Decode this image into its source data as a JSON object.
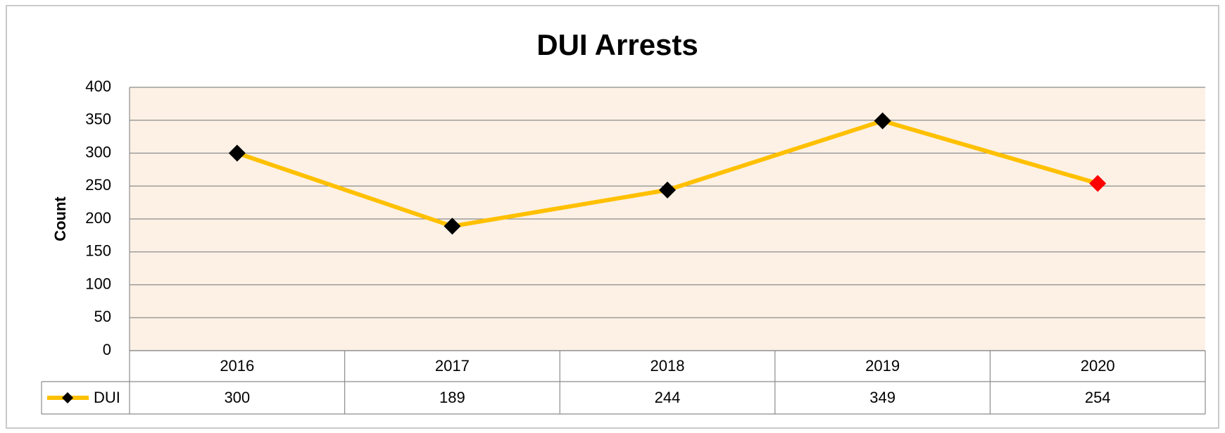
{
  "chart_data": {
    "type": "line",
    "title": "DUI Arrests",
    "y_label": "Count",
    "categories": [
      "2016",
      "2017",
      "2018",
      "2019",
      "2020"
    ],
    "series": [
      {
        "name": "DUI",
        "color": "#ffc000",
        "values": [
          300,
          189,
          244,
          349,
          254
        ],
        "marker_colors": [
          "#000000",
          "#000000",
          "#000000",
          "#000000",
          "#ff0000"
        ]
      }
    ],
    "ylim": [
      0,
      400
    ],
    "yticks": [
      0,
      50,
      100,
      150,
      200,
      250,
      300,
      350,
      400
    ],
    "grid": true,
    "plot_background": "#fdf1e5",
    "data_table": true
  }
}
